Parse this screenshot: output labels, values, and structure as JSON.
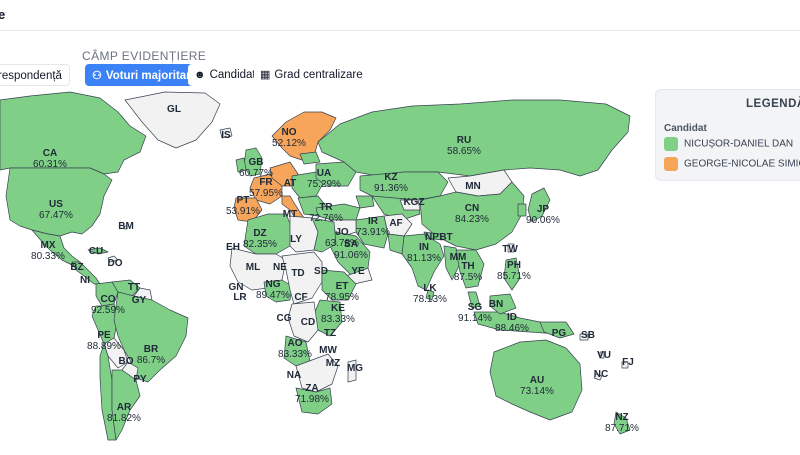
{
  "header": {
    "title": "e"
  },
  "toolbar": {
    "section_label": "CÂMP EVIDENȚIERE",
    "buttons": [
      {
        "label": "respondență",
        "active": false
      },
      {
        "label": "Voturi majoritare",
        "active": true,
        "icon": "network-icon"
      },
      {
        "label": "Candidat",
        "active": false,
        "icon": "user-icon"
      },
      {
        "label": "Grad centralizare",
        "active": false,
        "icon": "image-icon"
      }
    ]
  },
  "legend": {
    "title": "LEGENDĂ",
    "subtitle": "Candidat",
    "items": [
      {
        "label": "NICUȘOR-DANIEL DAN",
        "color": "#7fcf86"
      },
      {
        "label": "GEORGE-NICOLAE SIMION",
        "color": "#f6a55a"
      }
    ]
  },
  "colors": {
    "dan": "#7fcf86",
    "simion": "#f6a55a",
    "none": "#f2f2f2",
    "border": "#374151",
    "accent": "#3b82f6"
  },
  "map": {
    "labels": [
      {
        "code": "GL",
        "pct": ""
      },
      {
        "code": "IS",
        "pct": ""
      },
      {
        "code": "CA",
        "pct": "60.31%"
      },
      {
        "code": "US",
        "pct": "67.47%"
      },
      {
        "code": "BM",
        "pct": ""
      },
      {
        "code": "MX",
        "pct": "80.33%"
      },
      {
        "code": "CU",
        "pct": ""
      },
      {
        "code": "DO",
        "pct": ""
      },
      {
        "code": "BZ",
        "pct": ""
      },
      {
        "code": "NI",
        "pct": ""
      },
      {
        "code": "TT",
        "pct": ""
      },
      {
        "code": "GY",
        "pct": ""
      },
      {
        "code": "CO",
        "pct": "92.59%"
      },
      {
        "code": "PE",
        "pct": "88.89%"
      },
      {
        "code": "BR",
        "pct": "86.7%"
      },
      {
        "code": "BO",
        "pct": ""
      },
      {
        "code": "PY",
        "pct": ""
      },
      {
        "code": "AR",
        "pct": "81.82%"
      },
      {
        "code": "NO",
        "pct": "52.12%"
      },
      {
        "code": "GB",
        "pct": "60.77%"
      },
      {
        "code": "FR",
        "pct": "57.95%"
      },
      {
        "code": "PT",
        "pct": "53.91%"
      },
      {
        "code": "AT",
        "pct": ""
      },
      {
        "code": "MT",
        "pct": ""
      },
      {
        "code": "UA",
        "pct": "75.29%"
      },
      {
        "code": "TR",
        "pct": "72.76%"
      },
      {
        "code": "RU",
        "pct": "58.65%"
      },
      {
        "code": "KZ",
        "pct": "91.36%"
      },
      {
        "code": "MN",
        "pct": ""
      },
      {
        "code": "KGZ",
        "pct": ""
      },
      {
        "code": "AF",
        "pct": ""
      },
      {
        "code": "IR",
        "pct": "73.91%"
      },
      {
        "code": "JO",
        "pct": "63.78%"
      },
      {
        "code": "SA",
        "pct": "91.06%"
      },
      {
        "code": "YE",
        "pct": ""
      },
      {
        "code": "CN",
        "pct": "84.23%"
      },
      {
        "code": "JP",
        "pct": "90.06%"
      },
      {
        "code": "IN",
        "pct": "81.13%"
      },
      {
        "code": "NP",
        "pct": ""
      },
      {
        "code": "BT",
        "pct": ""
      },
      {
        "code": "LK",
        "pct": "78.13%"
      },
      {
        "code": "MM",
        "pct": ""
      },
      {
        "code": "TH",
        "pct": "87.5%"
      },
      {
        "code": "TW",
        "pct": ""
      },
      {
        "code": "PH",
        "pct": "85.71%"
      },
      {
        "code": "SG",
        "pct": "91.14%"
      },
      {
        "code": "BN",
        "pct": ""
      },
      {
        "code": "ID",
        "pct": "88.46%"
      },
      {
        "code": "PG",
        "pct": ""
      },
      {
        "code": "SB",
        "pct": ""
      },
      {
        "code": "VU",
        "pct": ""
      },
      {
        "code": "NC",
        "pct": ""
      },
      {
        "code": "FJ",
        "pct": ""
      },
      {
        "code": "AU",
        "pct": "73.14%"
      },
      {
        "code": "NZ",
        "pct": "87.71%"
      },
      {
        "code": "DZ",
        "pct": "82.35%"
      },
      {
        "code": "LY",
        "pct": ""
      },
      {
        "code": "EH",
        "pct": ""
      },
      {
        "code": "ML",
        "pct": ""
      },
      {
        "code": "NE",
        "pct": ""
      },
      {
        "code": "TD",
        "pct": ""
      },
      {
        "code": "SD",
        "pct": ""
      },
      {
        "code": "GN",
        "pct": ""
      },
      {
        "code": "LR",
        "pct": ""
      },
      {
        "code": "NG",
        "pct": "89.47%"
      },
      {
        "code": "CF",
        "pct": ""
      },
      {
        "code": "ET",
        "pct": "78.95%"
      },
      {
        "code": "KE",
        "pct": "83.33%"
      },
      {
        "code": "CG",
        "pct": ""
      },
      {
        "code": "CD",
        "pct": ""
      },
      {
        "code": "TZ",
        "pct": ""
      },
      {
        "code": "AO",
        "pct": "83.33%"
      },
      {
        "code": "MW",
        "pct": ""
      },
      {
        "code": "MZ",
        "pct": ""
      },
      {
        "code": "NA",
        "pct": ""
      },
      {
        "code": "ZA",
        "pct": "71.98%"
      },
      {
        "code": "MG",
        "pct": ""
      }
    ]
  }
}
